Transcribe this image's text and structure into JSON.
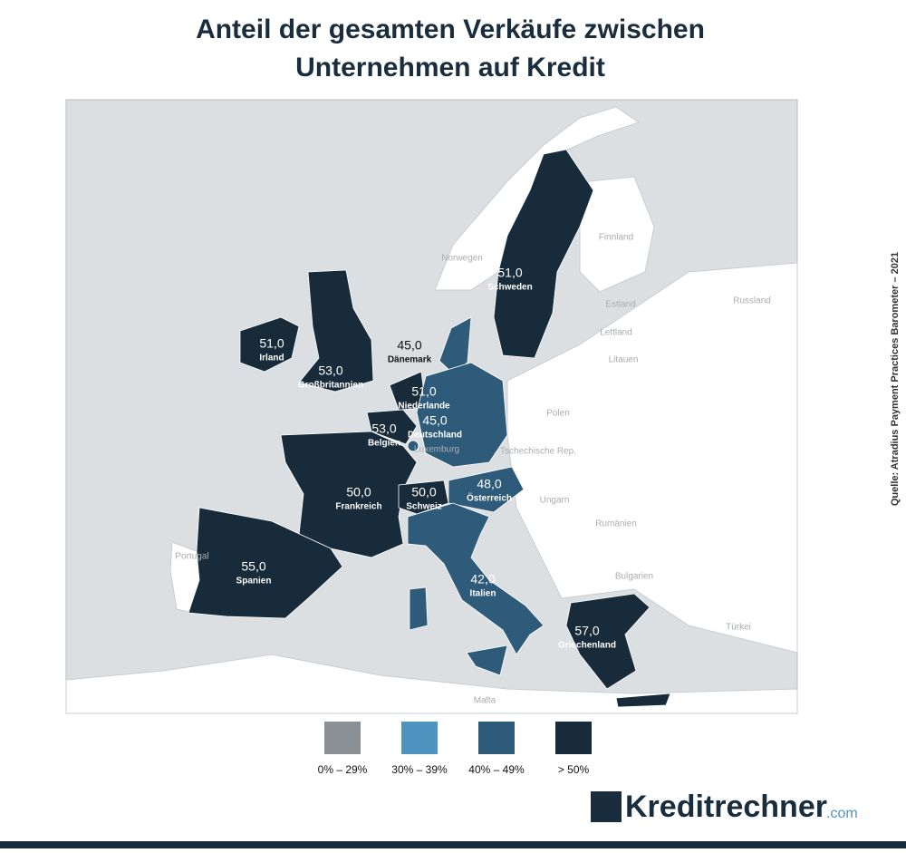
{
  "title_lines": [
    "Anteil der gesamten Verkäufe zwischen",
    "Unternehmen auf Kredit"
  ],
  "regions": [
    {
      "name": "Schweden",
      "value": 51,
      "value_label": "51,0",
      "color": "#172b3a"
    },
    {
      "name": "Irland",
      "value": 51,
      "value_label": "51,0",
      "color": "#172b3a"
    },
    {
      "name": "Großbritannien",
      "value": 53,
      "value_label": "53,0",
      "color": "#172b3a"
    },
    {
      "name": "Dänemark",
      "value": 45,
      "value_label": "45,0",
      "color": "#2f5b7b"
    },
    {
      "name": "Niederlande",
      "value": 51,
      "value_label": "51,0",
      "color": "#172b3a"
    },
    {
      "name": "Deutschland",
      "value": 45,
      "value_label": "45,0",
      "color": "#2f5b7b"
    },
    {
      "name": "Belgien",
      "value": 53,
      "value_label": "53,0",
      "color": "#172b3a"
    },
    {
      "name": "Frankreich",
      "value": 50,
      "value_label": "50,0",
      "color": "#172b3a"
    },
    {
      "name": "Schweiz",
      "value": 50,
      "value_label": "50,0",
      "color": "#172b3a"
    },
    {
      "name": "Österreich",
      "value": 48,
      "value_label": "48,0",
      "color": "#2f5b7b"
    },
    {
      "name": "Spanien",
      "value": 55,
      "value_label": "55,0",
      "color": "#172b3a"
    },
    {
      "name": "Italien",
      "value": 42,
      "value_label": "42,0",
      "color": "#2f5b7b"
    },
    {
      "name": "Griechenland",
      "value": 57,
      "value_label": "57,0",
      "color": "#172b3a"
    }
  ],
  "other_labels": [
    "Norwegen",
    "Finnland",
    "Russland",
    "Estland",
    "Lettland",
    "Litauen",
    "Polen",
    "Tschechische Rep.",
    "Luxemburg",
    "Ungarn",
    "Rumänien",
    "Bulgarien",
    "Türkei",
    "Portugal",
    "Malta"
  ],
  "legend": [
    {
      "label": "0% – 29%",
      "color": "#8b9095"
    },
    {
      "label": "30% – 39%",
      "color": "#4f93c0"
    },
    {
      "label": "40% – 49%",
      "color": "#2f5b7b"
    },
    {
      "label": "> 50%",
      "color": "#172b3a"
    }
  ],
  "source": "Quelle: Atradius Payment Practices Barometer – 2021",
  "logo": {
    "name": "Kreditrechner",
    "suffix": ".com"
  }
}
